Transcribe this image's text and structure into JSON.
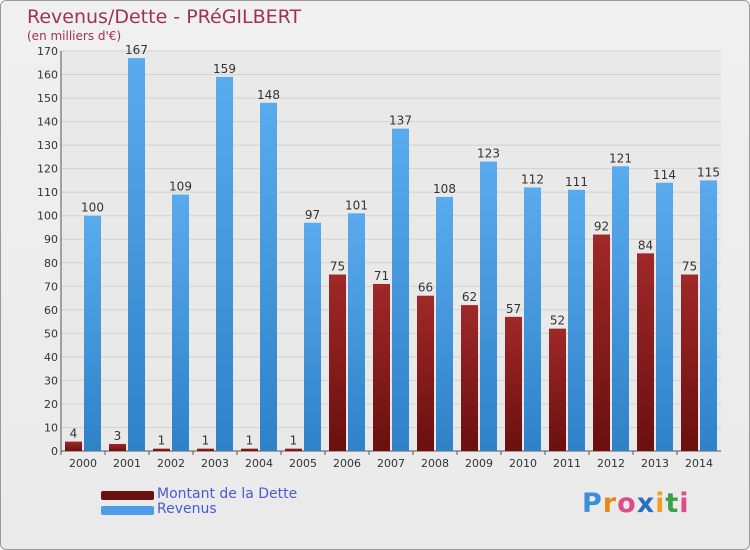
{
  "chart_data": {
    "type": "bar",
    "title": "Revenus/Dette - PRéGILBERT",
    "subtitle": "(en milliers d'€)",
    "categories": [
      "2000",
      "2001",
      "2002",
      "2003",
      "2004",
      "2005",
      "2006",
      "2007",
      "2008",
      "2009",
      "2010",
      "2011",
      "2012",
      "2013",
      "2014"
    ],
    "series": [
      {
        "name": "Montant de la Dette",
        "color": "#8b1a1a",
        "values": [
          4,
          3,
          1,
          1,
          1,
          1,
          75,
          71,
          66,
          62,
          57,
          52,
          92,
          84,
          75
        ]
      },
      {
        "name": "Revenus",
        "color": "#4d9ee6",
        "values": [
          100,
          167,
          109,
          159,
          148,
          97,
          101,
          137,
          108,
          123,
          112,
          111,
          121,
          114,
          115
        ]
      }
    ],
    "ylim": [
      0,
      170
    ],
    "yticks": [
      0,
      10,
      20,
      30,
      40,
      50,
      60,
      70,
      80,
      90,
      100,
      110,
      120,
      130,
      140,
      150,
      160,
      170
    ],
    "grid": true,
    "legend": "bottom-left"
  },
  "logo": {
    "letters": [
      "P",
      "r",
      "o",
      "x",
      "i",
      "t",
      "i"
    ],
    "colors": [
      "#3a8fd8",
      "#e88a1a",
      "#e04a8a",
      "#2a6fc4",
      "#f0a020",
      "#3aa04a",
      "#e04a8a"
    ]
  }
}
